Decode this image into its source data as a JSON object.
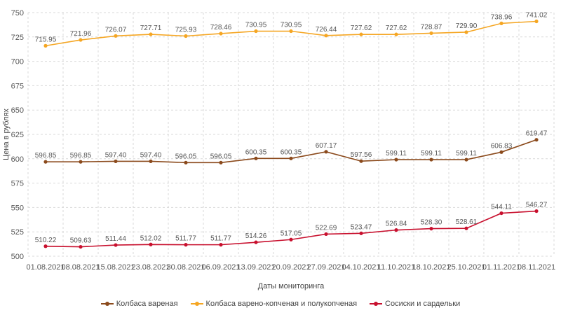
{
  "chart_data": {
    "type": "line",
    "title": "",
    "xlabel": "Даты мониторинга",
    "ylabel": "Цена в рублях",
    "ylim": [
      500,
      750
    ],
    "yticks": [
      500,
      525,
      550,
      575,
      600,
      625,
      650,
      675,
      700,
      725,
      750
    ],
    "grid": true,
    "legend_position": "bottom",
    "categories": [
      "01.08.2021",
      "08.08.2021",
      "15.08.2021",
      "23.08.2021",
      "30.08.2021",
      "06.09.2021",
      "13.09.2021",
      "20.09.2021",
      "27.09.2021",
      "04.10.2021",
      "11.10.2021",
      "18.10.2021",
      "25.10.2021",
      "01.11.2021",
      "08.11.2021"
    ],
    "series": [
      {
        "name": "Колбаса вареная",
        "color": "#8B4A1C",
        "values": [
          596.85,
          596.85,
          597.4,
          597.4,
          596.05,
          596.05,
          600.35,
          600.35,
          607.17,
          597.56,
          599.11,
          599.11,
          599.11,
          606.83,
          619.47
        ],
        "labels": [
          "596.85",
          "596.85",
          "597.40",
          "597.40",
          "596.05",
          "596.05",
          "600.35",
          "600.35",
          "607.17",
          "597.56",
          "599.11",
          "599.11",
          "599.11",
          "606.83",
          "619.47"
        ]
      },
      {
        "name": "Колбаса варено-копченая и полукопченая",
        "color": "#F5A623",
        "values": [
          715.95,
          721.96,
          726.07,
          727.71,
          725.93,
          728.46,
          730.95,
          730.95,
          726.44,
          727.62,
          727.62,
          728.87,
          729.9,
          738.96,
          741.02
        ],
        "labels": [
          "715.95",
          "721.96",
          "726.07",
          "727.71",
          "725.93",
          "728.46",
          "730.95",
          "730.95",
          "726.44",
          "727.62",
          "727.62",
          "728.87",
          "729.90",
          "738.96",
          "741.02"
        ]
      },
      {
        "name": "Сосиски и сардельки",
        "color": "#C8102E",
        "values": [
          510.22,
          509.63,
          511.44,
          512.02,
          511.77,
          511.77,
          514.26,
          517.05,
          522.69,
          523.47,
          526.84,
          528.3,
          528.61,
          544.11,
          546.27
        ],
        "labels": [
          "510.22",
          "509.63",
          "511.44",
          "512.02",
          "511.77",
          "511.77",
          "514.26",
          "517.05",
          "522.69",
          "523.47",
          "526.84",
          "528.30",
          "528.61",
          "544.11",
          "546.27"
        ]
      }
    ]
  }
}
